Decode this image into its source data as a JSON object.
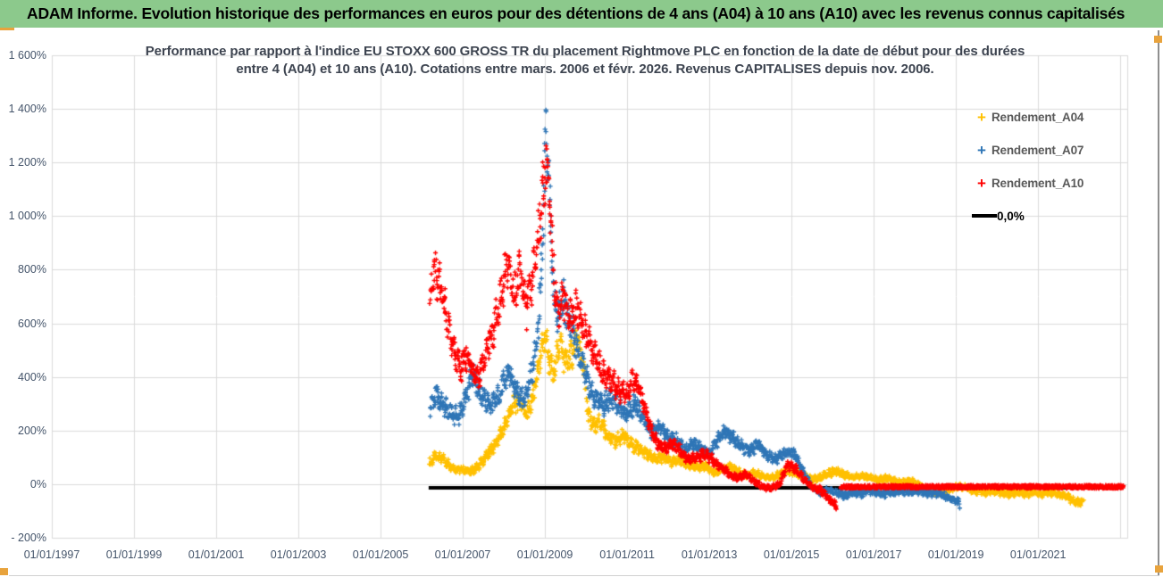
{
  "header": {
    "title": "ADAM Informe. Evolution historique des performances en euros pour des détentions de 4 ans (A04) à 10 ans (A10) avec les revenus connus capitalisés",
    "bg_color": "#8CC98C"
  },
  "chart_data": {
    "type": "scatter",
    "title_line1": "Performance par rapport à l'indice EU STOXX 600 GROSS TR  du placement Rightmove PLC en fonction de la date de début pour des durées",
    "title_line2": "entre 4 (A04) et 10 ans (A10). Cotations entre mars. 2006 et févr. 2026. Revenus CAPITALISES depuis nov. 2006.",
    "marker": "+",
    "grid": true,
    "grid_color": "#DBDBDB",
    "x_range_years": [
      1997,
      2023.17
    ],
    "y_range": [
      -200,
      1600
    ],
    "x_ticks": [
      {
        "label": "01/01/1997",
        "year": 1997
      },
      {
        "label": "01/01/1999",
        "year": 1999
      },
      {
        "label": "01/01/2001",
        "year": 2001
      },
      {
        "label": "01/01/2003",
        "year": 2003
      },
      {
        "label": "01/01/2005",
        "year": 2005
      },
      {
        "label": "01/01/2007",
        "year": 2007
      },
      {
        "label": "01/01/2009",
        "year": 2009
      },
      {
        "label": "01/01/2011",
        "year": 2011
      },
      {
        "label": "01/01/2013",
        "year": 2013
      },
      {
        "label": "01/01/2015",
        "year": 2015
      },
      {
        "label": "01/01/2017",
        "year": 2017
      },
      {
        "label": "01/01/2019",
        "year": 2019
      },
      {
        "label": "01/01/2021",
        "year": 2021
      }
    ],
    "extra_gridline_years": [
      2023
    ],
    "y_ticks": [
      {
        "label": "1 600%",
        "value": 1600
      },
      {
        "label": "1 400%",
        "value": 1400
      },
      {
        "label": "1 200%",
        "value": 1200
      },
      {
        "label": "1 000%",
        "value": 1000
      },
      {
        "label": "800%",
        "value": 800
      },
      {
        "label": "600%",
        "value": 600
      },
      {
        "label": "400%",
        "value": 400
      },
      {
        "label": "200%",
        "value": 200
      },
      {
        "label": "0%",
        "value": 0
      },
      {
        "label": "- 200%",
        "value": -200
      }
    ],
    "legend": [
      {
        "label": "Rendement_A04",
        "color": "#FFC000",
        "marker": "+"
      },
      {
        "label": "Rendement_A07",
        "color": "#2E75B6",
        "marker": "+"
      },
      {
        "label": "Rendement_A10",
        "color": "#FF0000",
        "marker": "+"
      },
      {
        "label": "0,0%",
        "color": "#000000",
        "marker": "line"
      }
    ],
    "zero_line": {
      "name": "0,0%",
      "color": "#000000",
      "from_year": 2006.17,
      "to_year": 2023.08,
      "value": 0,
      "plot_offset_pct": -10
    },
    "jitter": {
      "band_spread_base": 7,
      "band_spread_ratio": 0.07,
      "wave_base": 5,
      "wave_ratio": 0.035
    },
    "series": [
      {
        "name": "Rendement_A04",
        "color": "#FFC000",
        "points": [
          [
            2006.2,
            80
          ],
          [
            2006.35,
            105
          ],
          [
            2006.5,
            95
          ],
          [
            2006.65,
            75
          ],
          [
            2006.8,
            60
          ],
          [
            2007.0,
            52
          ],
          [
            2007.2,
            48
          ],
          [
            2007.4,
            68
          ],
          [
            2007.6,
            110
          ],
          [
            2007.8,
            150
          ],
          [
            2008.0,
            210
          ],
          [
            2008.2,
            285
          ],
          [
            2008.4,
            320
          ],
          [
            2008.55,
            255
          ],
          [
            2008.7,
            320
          ],
          [
            2008.85,
            430
          ],
          [
            2009.0,
            560
          ],
          [
            2009.1,
            470
          ],
          [
            2009.2,
            400
          ],
          [
            2009.35,
            530
          ],
          [
            2009.5,
            450
          ],
          [
            2009.65,
            480
          ],
          [
            2009.8,
            545
          ],
          [
            2009.95,
            430
          ],
          [
            2010.05,
            255
          ],
          [
            2010.2,
            210
          ],
          [
            2010.35,
            235
          ],
          [
            2010.5,
            185
          ],
          [
            2010.7,
            160
          ],
          [
            2010.9,
            180
          ],
          [
            2011.1,
            150
          ],
          [
            2011.3,
            130
          ],
          [
            2011.5,
            110
          ],
          [
            2011.7,
            92
          ],
          [
            2011.9,
            100
          ],
          [
            2012.1,
            82
          ],
          [
            2012.3,
            92
          ],
          [
            2012.5,
            72
          ],
          [
            2012.7,
            62
          ],
          [
            2012.9,
            72
          ],
          [
            2013.1,
            42
          ],
          [
            2013.3,
            55
          ],
          [
            2013.5,
            65
          ],
          [
            2013.7,
            45
          ],
          [
            2013.9,
            32
          ],
          [
            2014.1,
            42
          ],
          [
            2014.3,
            32
          ],
          [
            2014.5,
            22
          ],
          [
            2014.7,
            35
          ],
          [
            2014.9,
            50
          ],
          [
            2015.1,
            42
          ],
          [
            2015.3,
            30
          ],
          [
            2015.5,
            15
          ],
          [
            2015.7,
            25
          ],
          [
            2015.9,
            40
          ],
          [
            2016.1,
            50
          ],
          [
            2016.3,
            35
          ],
          [
            2016.5,
            25
          ],
          [
            2016.7,
            32
          ],
          [
            2016.9,
            25
          ],
          [
            2017.1,
            15
          ],
          [
            2017.3,
            22
          ],
          [
            2017.5,
            12
          ],
          [
            2017.7,
            6
          ],
          [
            2017.9,
            12
          ],
          [
            2018.1,
            0
          ],
          [
            2018.3,
            -20
          ],
          [
            2018.5,
            -30
          ],
          [
            2018.7,
            -25
          ],
          [
            2018.9,
            -15
          ],
          [
            2019.1,
            -10
          ],
          [
            2019.3,
            -15
          ],
          [
            2019.5,
            -25
          ],
          [
            2019.7,
            -30
          ],
          [
            2019.9,
            -25
          ],
          [
            2020.1,
            -32
          ],
          [
            2020.3,
            -36
          ],
          [
            2020.5,
            -30
          ],
          [
            2020.7,
            -36
          ],
          [
            2020.9,
            -30
          ],
          [
            2021.1,
            -36
          ],
          [
            2021.3,
            -30
          ],
          [
            2021.5,
            -36
          ],
          [
            2021.7,
            -46
          ],
          [
            2021.9,
            -66
          ],
          [
            2022.0,
            -72
          ],
          [
            2022.1,
            -60
          ]
        ]
      },
      {
        "name": "Rendement_A07",
        "color": "#2E75B6",
        "points": [
          [
            2006.2,
            285
          ],
          [
            2006.35,
            330
          ],
          [
            2006.5,
            300
          ],
          [
            2006.7,
            262
          ],
          [
            2006.9,
            252
          ],
          [
            2007.1,
            330
          ],
          [
            2007.25,
            420
          ],
          [
            2007.4,
            352
          ],
          [
            2007.55,
            312
          ],
          [
            2007.7,
            292
          ],
          [
            2007.85,
            322
          ],
          [
            2008.0,
            382
          ],
          [
            2008.15,
            420
          ],
          [
            2008.3,
            352
          ],
          [
            2008.5,
            312
          ],
          [
            2008.7,
            420
          ],
          [
            2008.85,
            600
          ],
          [
            2008.95,
            950
          ],
          [
            2009.03,
            1360
          ],
          [
            2009.1,
            1120
          ],
          [
            2009.2,
            720
          ],
          [
            2009.3,
            625
          ],
          [
            2009.45,
            685
          ],
          [
            2009.6,
            600
          ],
          [
            2009.75,
            522
          ],
          [
            2009.9,
            462
          ],
          [
            2010.05,
            382
          ],
          [
            2010.2,
            322
          ],
          [
            2010.4,
            292
          ],
          [
            2010.6,
            322
          ],
          [
            2010.8,
            282
          ],
          [
            2011.0,
            262
          ],
          [
            2011.2,
            300
          ],
          [
            2011.4,
            242
          ],
          [
            2011.6,
            192
          ],
          [
            2011.8,
            212
          ],
          [
            2012.0,
            172
          ],
          [
            2012.2,
            162
          ],
          [
            2012.4,
            132
          ],
          [
            2012.6,
            152
          ],
          [
            2012.8,
            132
          ],
          [
            2013.0,
            112
          ],
          [
            2013.2,
            162
          ],
          [
            2013.4,
            200
          ],
          [
            2013.6,
            172
          ],
          [
            2013.8,
            142
          ],
          [
            2014.0,
            122
          ],
          [
            2014.2,
            152
          ],
          [
            2014.4,
            112
          ],
          [
            2014.6,
            92
          ],
          [
            2014.8,
            112
          ],
          [
            2015.0,
            122
          ],
          [
            2015.15,
            95
          ],
          [
            2015.3,
            40
          ],
          [
            2015.5,
            -12
          ],
          [
            2015.7,
            -32
          ],
          [
            2015.9,
            -22
          ],
          [
            2016.1,
            -32
          ],
          [
            2016.3,
            -42
          ],
          [
            2016.5,
            -32
          ],
          [
            2016.7,
            -36
          ],
          [
            2016.9,
            -26
          ],
          [
            2017.1,
            -32
          ],
          [
            2017.3,
            -36
          ],
          [
            2017.5,
            -30
          ],
          [
            2017.7,
            -26
          ],
          [
            2017.9,
            -32
          ],
          [
            2018.1,
            -26
          ],
          [
            2018.3,
            -36
          ],
          [
            2018.5,
            -32
          ],
          [
            2018.7,
            -42
          ],
          [
            2018.9,
            -56
          ],
          [
            2019.0,
            -66
          ],
          [
            2019.1,
            -73
          ]
        ]
      },
      {
        "name": "Rendement_A10",
        "color": "#FF0000",
        "points": [
          [
            2006.2,
            700
          ],
          [
            2006.3,
            780
          ],
          [
            2006.45,
            760
          ],
          [
            2006.6,
            620
          ],
          [
            2006.75,
            505
          ],
          [
            2006.95,
            425
          ],
          [
            2007.1,
            480
          ],
          [
            2007.25,
            430
          ],
          [
            2007.4,
            395
          ],
          [
            2007.55,
            480
          ],
          [
            2007.7,
            552
          ],
          [
            2007.85,
            640
          ],
          [
            2008.0,
            740
          ],
          [
            2008.1,
            830
          ],
          [
            2008.25,
            705
          ],
          [
            2008.4,
            790
          ],
          [
            2008.55,
            655
          ],
          [
            2008.7,
            760
          ],
          [
            2008.85,
            950
          ],
          [
            2008.97,
            1120
          ],
          [
            2009.05,
            1210
          ],
          [
            2009.15,
            940
          ],
          [
            2009.3,
            645
          ],
          [
            2009.45,
            700
          ],
          [
            2009.6,
            622
          ],
          [
            2009.8,
            652
          ],
          [
            2010.0,
            562
          ],
          [
            2010.2,
            482
          ],
          [
            2010.4,
            422
          ],
          [
            2010.6,
            392
          ],
          [
            2010.8,
            348
          ],
          [
            2011.0,
            332
          ],
          [
            2011.15,
            392
          ],
          [
            2011.3,
            352
          ],
          [
            2011.5,
            242
          ],
          [
            2011.7,
            162
          ],
          [
            2011.9,
            132
          ],
          [
            2012.1,
            152
          ],
          [
            2012.3,
            122
          ],
          [
            2012.5,
            92
          ],
          [
            2012.7,
            102
          ],
          [
            2012.9,
            112
          ],
          [
            2013.1,
            86
          ],
          [
            2013.3,
            62
          ],
          [
            2013.5,
            36
          ],
          [
            2013.7,
            22
          ],
          [
            2013.9,
            36
          ],
          [
            2014.1,
            10
          ],
          [
            2014.3,
            -10
          ],
          [
            2014.5,
            -16
          ],
          [
            2014.7,
            0
          ],
          [
            2014.9,
            70
          ],
          [
            2015.1,
            60
          ],
          [
            2015.3,
            20
          ],
          [
            2015.5,
            -10
          ],
          [
            2015.7,
            -22
          ],
          [
            2015.85,
            -46
          ],
          [
            2016.0,
            -66
          ],
          [
            2016.1,
            -76
          ]
        ],
        "flat_segment": {
          "from_year": 2016.2,
          "to_year": 2023.08,
          "value": -10,
          "spread": 6
        }
      }
    ]
  }
}
